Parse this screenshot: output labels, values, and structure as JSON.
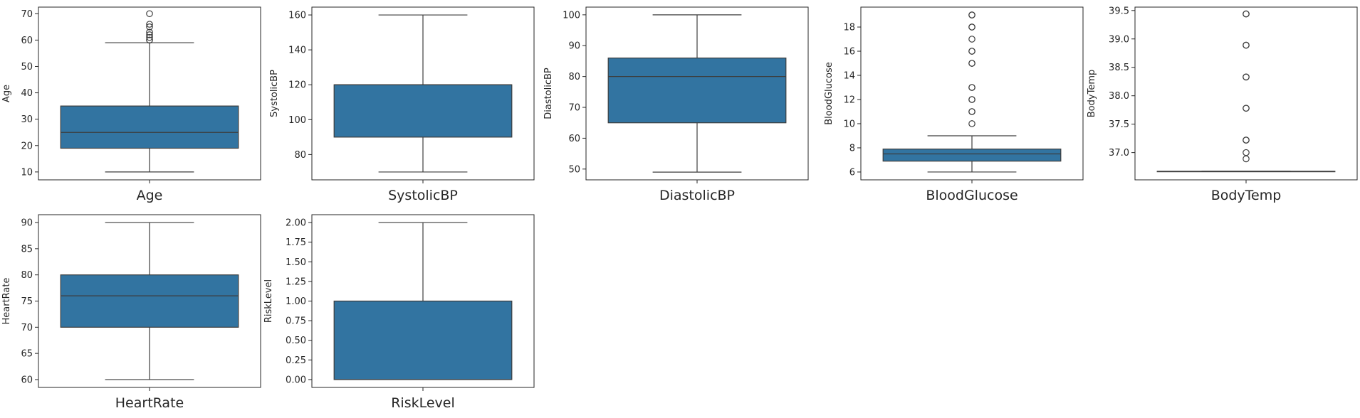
{
  "colors": {
    "box_fill": "#3274a1",
    "line": "#3d3d3d",
    "frame": "#262626"
  },
  "chart_data": [
    {
      "type": "box",
      "xlabel": "Age",
      "ylabel": "Age",
      "ylim": [
        7,
        72.5
      ],
      "yticks": [
        10,
        20,
        30,
        40,
        50,
        60,
        70
      ],
      "tick_labels": [
        "10",
        "20",
        "30",
        "40",
        "50",
        "60",
        "70"
      ],
      "whisker_low": 10,
      "q1": 19,
      "median": 25,
      "q3": 35,
      "whisker_high": 59,
      "outliers": [
        60,
        60,
        61,
        62,
        63,
        65,
        66,
        70
      ]
    },
    {
      "type": "box",
      "xlabel": "SystolicBP",
      "ylabel": "SystolicBP",
      "ylim": [
        65.5,
        164.5
      ],
      "yticks": [
        80,
        100,
        120,
        140,
        160
      ],
      "tick_labels": [
        "80",
        "100",
        "120",
        "140",
        "160"
      ],
      "whisker_low": 70,
      "q1": 90,
      "median": 120,
      "q3": 120,
      "whisker_high": 160,
      "outliers": []
    },
    {
      "type": "box",
      "xlabel": "DiastolicBP",
      "ylabel": "DiastolicBP",
      "ylim": [
        46.5,
        102.5
      ],
      "yticks": [
        50,
        60,
        70,
        80,
        90,
        100
      ],
      "tick_labels": [
        "50",
        "60",
        "70",
        "80",
        "90",
        "100"
      ],
      "whisker_low": 49,
      "q1": 65,
      "median": 80,
      "q3": 86,
      "whisker_high": 100,
      "outliers": []
    },
    {
      "type": "box",
      "xlabel": "BloodGlucose",
      "ylabel": "BloodGlucose",
      "ylim": [
        5.35,
        19.65
      ],
      "yticks": [
        6,
        8,
        10,
        12,
        14,
        16,
        18
      ],
      "tick_labels": [
        "6",
        "8",
        "10",
        "12",
        "14",
        "16",
        "18"
      ],
      "whisker_low": 6,
      "q1": 6.9,
      "median": 7.5,
      "q3": 7.9,
      "whisker_high": 9,
      "outliers": [
        10,
        11,
        11,
        12,
        12,
        13,
        13,
        15,
        15,
        16,
        16,
        17,
        18,
        18,
        19,
        19
      ]
    },
    {
      "type": "box",
      "xlabel": "BodyTemp",
      "ylabel": "BodyTemp",
      "ylim": [
        36.52,
        39.56
      ],
      "yticks": [
        37.0,
        37.5,
        38.0,
        38.5,
        39.0,
        39.5
      ],
      "tick_labels": [
        "37.0",
        "37.5",
        "38.0",
        "38.5",
        "39.0",
        "39.5"
      ],
      "whisker_low": 36.67,
      "q1": 36.67,
      "median": 36.67,
      "q3": 36.67,
      "whisker_high": 36.67,
      "outliers": [
        36.89,
        37.0,
        37.22,
        37.22,
        37.78,
        37.78,
        38.33,
        38.33,
        38.89,
        38.89,
        39.44,
        39.44
      ]
    },
    {
      "type": "box",
      "xlabel": "HeartRate",
      "ylabel": "HeartRate",
      "ylim": [
        58.5,
        91.5
      ],
      "yticks": [
        60,
        65,
        70,
        75,
        80,
        85,
        90
      ],
      "tick_labels": [
        "60",
        "65",
        "70",
        "75",
        "80",
        "85",
        "90"
      ],
      "whisker_low": 60,
      "q1": 70,
      "median": 76,
      "q3": 80,
      "whisker_high": 90,
      "outliers": []
    },
    {
      "type": "box",
      "xlabel": "RiskLevel",
      "ylabel": "RiskLevel",
      "ylim": [
        -0.1,
        2.1
      ],
      "yticks": [
        0,
        0.25,
        0.5,
        0.75,
        1.0,
        1.25,
        1.5,
        1.75,
        2.0
      ],
      "tick_labels": [
        "0.00",
        "0.25",
        "0.50",
        "0.75",
        "1.00",
        "1.25",
        "1.50",
        "1.75",
        "2.00"
      ],
      "whisker_low": 0,
      "q1": 0,
      "median": 0,
      "q3": 1,
      "whisker_high": 2,
      "outliers": []
    }
  ]
}
